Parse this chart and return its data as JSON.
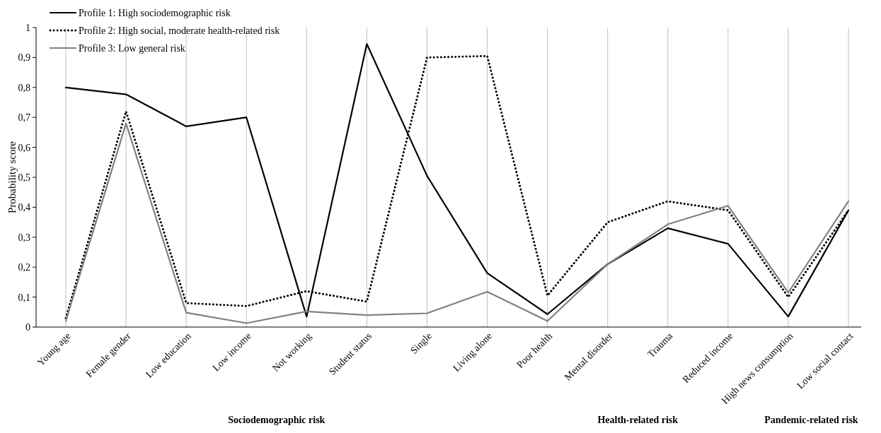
{
  "chart_data": {
    "type": "line",
    "ylabel": "Probability score",
    "categories": [
      "Young age",
      "Female gender",
      "Low education",
      "Low income",
      "Not working",
      "Student status",
      "Single",
      "Living alone",
      "Poor health",
      "Mental disorder",
      "Trauma",
      "Reduced income",
      "High news consumption",
      "Low social contact"
    ],
    "series": [
      {
        "name": "Profile 1: High sociodemographic risk",
        "color": "#000000",
        "line_style": "solid",
        "values": [
          0.8,
          0.777,
          0.67,
          0.7,
          0.035,
          0.945,
          0.505,
          0.18,
          0.043,
          0.21,
          0.33,
          0.278,
          0.035,
          0.39
        ]
      },
      {
        "name": "Profile 2: High social,  moderate health-related risk",
        "color": "#000000",
        "line_style": "dotted",
        "values": [
          0.03,
          0.72,
          0.08,
          0.07,
          0.12,
          0.085,
          0.9,
          0.905,
          0.105,
          0.35,
          0.42,
          0.39,
          0.1,
          0.39
        ]
      },
      {
        "name": "Profile 3: Low general risk",
        "color": "#808080",
        "line_style": "solid",
        "values": [
          0.02,
          0.68,
          0.048,
          0.013,
          0.052,
          0.04,
          0.046,
          0.118,
          0.02,
          0.21,
          0.343,
          0.405,
          0.115,
          0.42
        ]
      }
    ],
    "ylim": [
      0,
      1
    ],
    "yticks": [
      0,
      {
        "value": 0.1,
        "label": "0,1"
      },
      {
        "value": 0.2,
        "label": "0,2"
      },
      {
        "value": 0.3,
        "label": "0,3"
      },
      {
        "value": 0.4,
        "label": "0,4"
      },
      {
        "value": 0.5,
        "label": "0,5"
      },
      {
        "value": 0.6,
        "label": "0,6"
      },
      {
        "value": 0.7,
        "label": "0,7"
      },
      {
        "value": 0.8,
        "label": "0,8"
      },
      {
        "value": 0.9,
        "label": "0,9"
      },
      1
    ],
    "grid": "x",
    "legend": "top left",
    "marker": "none",
    "annotations": [
      "Sociodemographic risk",
      "Health-related risk",
      "Pandemic-related risk"
    ]
  }
}
